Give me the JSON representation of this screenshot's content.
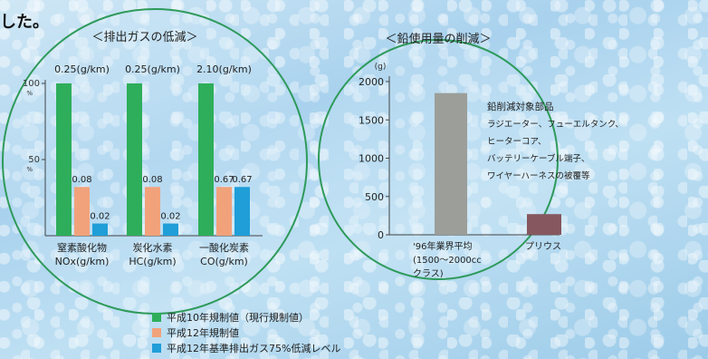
{
  "header_text": "した。",
  "chart_data": [
    {
      "type": "bar",
      "title": "＜排出ガスの低減＞",
      "y_ticks": [
        "100",
        "50"
      ],
      "y_unit": "%",
      "ylim": [
        0,
        100
      ],
      "categories": [
        {
          "line1": "窒素酸化物",
          "line2": "NOx(g/km)",
          "top_label": "0.25(g/km)"
        },
        {
          "line1": "炭化水素",
          "line2": "HC(g/km)",
          "top_label": "0.25(g/km)"
        },
        {
          "line1": "一酸化炭素",
          "line2": "CO(g/km)",
          "top_label": "2.10(g/km)"
        }
      ],
      "series": [
        {
          "name": "平成10年規制値（現行規制値）",
          "color": "#2eae5a",
          "values": [
            100,
            100,
            100
          ],
          "labels": [
            "",
            "",
            ""
          ]
        },
        {
          "name": "平成12年規制値",
          "color": "#f2a27b",
          "values": [
            32,
            32,
            32
          ],
          "labels": [
            "0.08",
            "0.08",
            "0.67"
          ]
        },
        {
          "name": "平成12年基準排出ガス75%低減レベル",
          "color": "#1f9ed8",
          "values": [
            8,
            8,
            32
          ],
          "labels": [
            "0.02",
            "0.02",
            "0.67"
          ]
        }
      ]
    },
    {
      "type": "bar",
      "title": "＜鉛使用量の削減＞",
      "y_unit": "(g)",
      "ylim": [
        0,
        2000
      ],
      "y_ticks": [
        0,
        500,
        1000,
        1500,
        2000
      ],
      "categories": [
        {
          "line1": "'96年業界平均",
          "line2": "(1500～2000cc",
          "line3": "クラス)"
        },
        {
          "line1": "プリウス",
          "line2": "",
          "line3": ""
        }
      ],
      "values": [
        1850,
        270
      ],
      "colors": [
        "#9c9e99",
        "#86575f"
      ],
      "annotation": [
        "鉛削減対象部品",
        "ラジエーター、フューエルタンク、",
        "ヒーターコア、",
        "バッテリーケーブル端子、",
        "ワイヤーハーネスの被覆等"
      ]
    }
  ]
}
